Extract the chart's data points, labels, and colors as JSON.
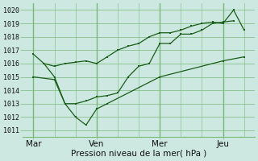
{
  "background_color": "#cce8e0",
  "grid_color": "#7ab87a",
  "line_color": "#1a5c1a",
  "xlabel": "Pression niveau de la mer( hPa )",
  "ylim": [
    1010.5,
    1020.5
  ],
  "yticks": [
    1011,
    1012,
    1013,
    1014,
    1015,
    1016,
    1017,
    1018,
    1019,
    1020
  ],
  "xtick_labels": [
    "Mar",
    "Ven",
    "Mer",
    "Jeu"
  ],
  "xtick_positions": [
    0,
    3,
    6,
    9
  ],
  "line1_x": [
    0,
    0.5,
    1.0,
    1.5,
    2.0,
    2.5,
    3.0,
    3.5,
    4.0,
    4.5,
    5.0,
    5.5,
    6.0,
    6.5,
    7.0,
    7.5,
    8.0,
    8.5,
    9.0,
    9.5,
    10.0
  ],
  "line1_y": [
    1016.7,
    1016.0,
    1015.8,
    1016.0,
    1016.1,
    1016.2,
    1016.0,
    1016.5,
    1017.0,
    1017.3,
    1017.5,
    1018.0,
    1018.3,
    1018.3,
    1018.5,
    1018.8,
    1019.0,
    1019.1,
    1019.0,
    1020.0,
    1018.5
  ],
  "line2_x": [
    0.5,
    1.0,
    1.5,
    2.0,
    2.5,
    3.0,
    3.5,
    4.0,
    4.5,
    5.0,
    5.5,
    6.0,
    6.5,
    7.0,
    7.5,
    8.0,
    8.5,
    9.0,
    9.5
  ],
  "line2_y": [
    1016.0,
    1015.0,
    1013.0,
    1013.0,
    1013.2,
    1013.5,
    1013.6,
    1013.8,
    1015.0,
    1015.8,
    1016.0,
    1017.5,
    1017.5,
    1018.2,
    1018.2,
    1018.5,
    1019.0,
    1019.1,
    1019.2
  ],
  "line3_x": [
    0,
    1.0,
    1.5,
    2.0,
    2.5,
    3.0,
    3.5,
    6.0,
    9.0,
    10.0
  ],
  "line3_y": [
    1015.0,
    1014.8,
    1013.0,
    1012.0,
    1011.4,
    1012.6,
    1013.0,
    1015.0,
    1016.2,
    1016.5
  ],
  "xlim": [
    -0.5,
    10.5
  ]
}
